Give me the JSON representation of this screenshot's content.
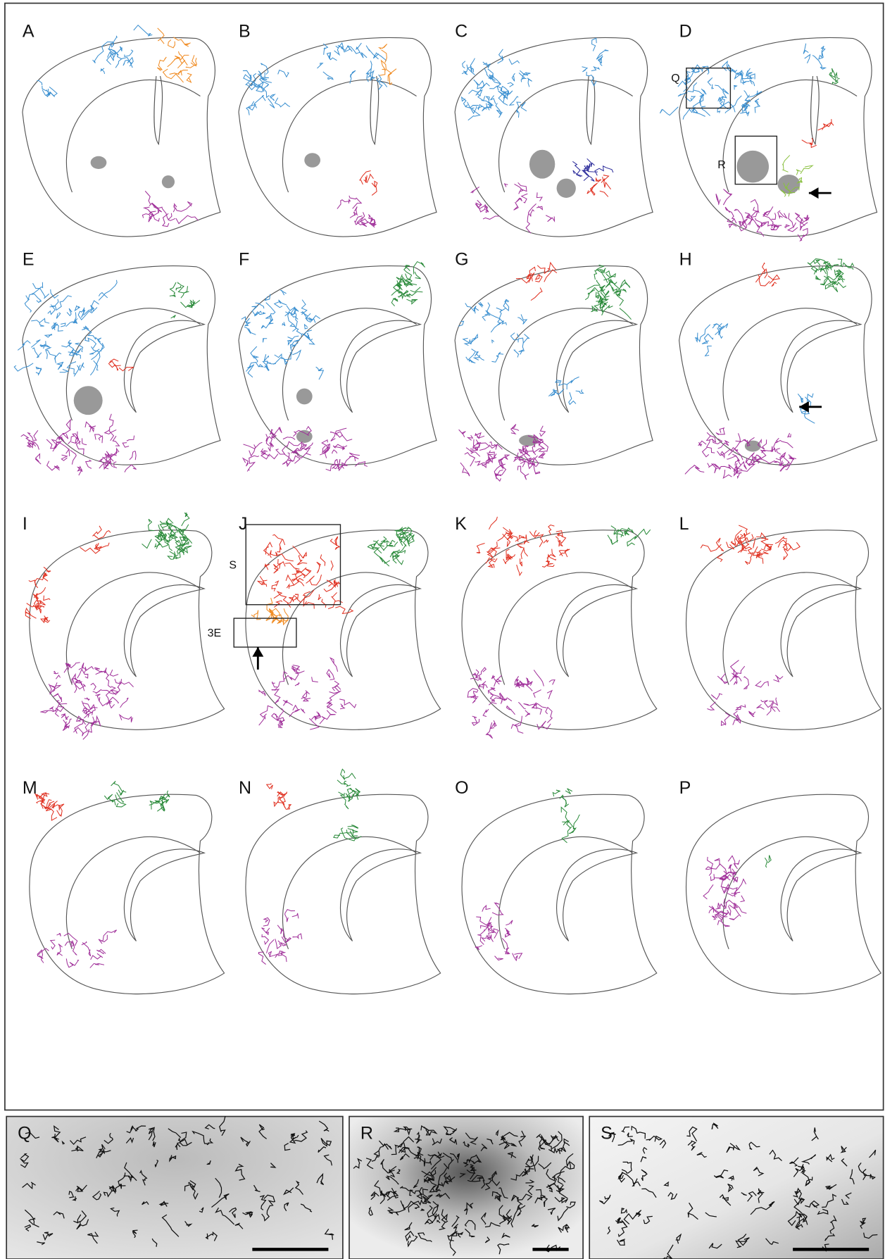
{
  "section_panels": [
    "A",
    "B",
    "C",
    "D",
    "E",
    "F",
    "G",
    "H",
    "I",
    "J",
    "K",
    "L",
    "M",
    "N",
    "O",
    "P"
  ],
  "box_labels": [
    "Q",
    "R",
    "S",
    "3E"
  ],
  "photo_panels": [
    "Q",
    "R",
    "S"
  ]
}
